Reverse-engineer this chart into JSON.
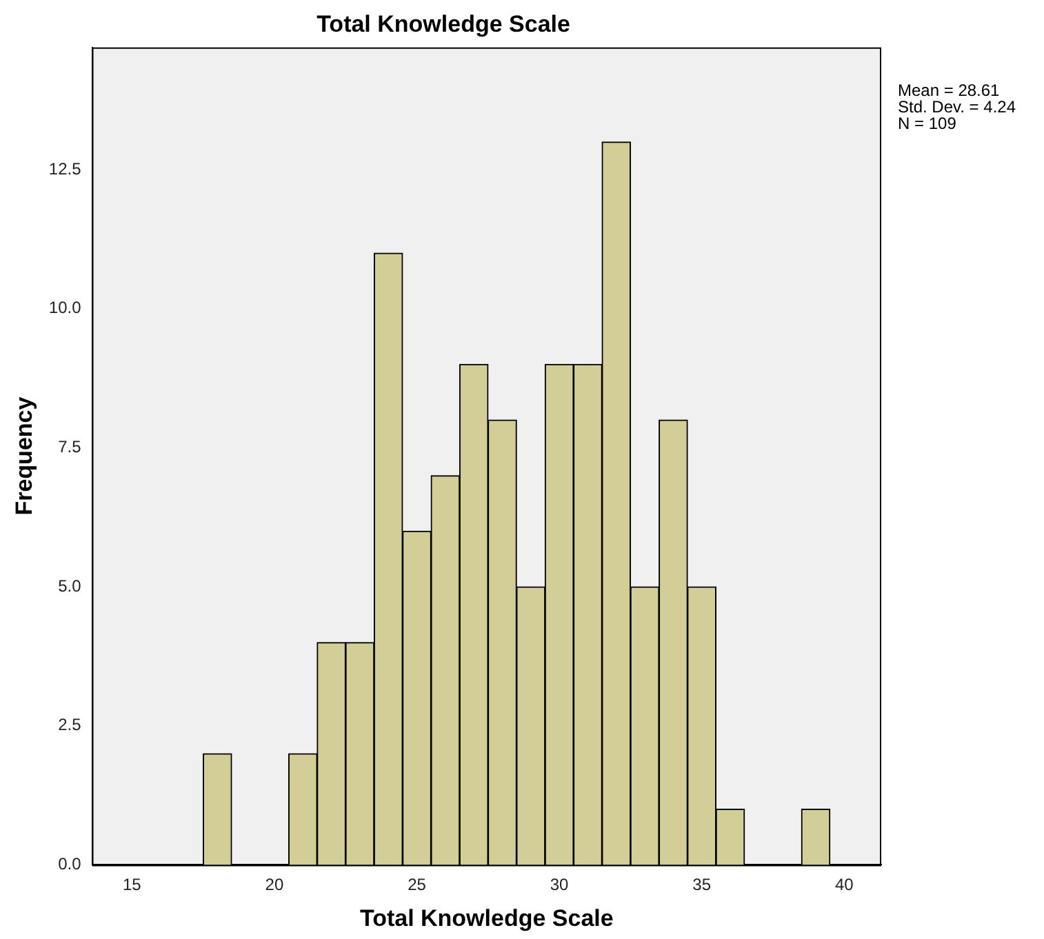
{
  "chart_data": {
    "type": "histogram",
    "title": "Total Knowledge Scale",
    "xlabel": "Total Knowledge Scale",
    "ylabel": "Frequency",
    "bins": [
      17.5,
      18.5,
      19.5,
      20.5,
      21.5,
      22.5,
      23.5,
      24.5,
      25.5,
      26.5,
      27.5,
      28.5,
      29.5,
      30.5,
      31.5,
      32.5,
      33.5,
      34.5,
      35.5,
      36.5,
      37.5,
      38.5,
      39.5
    ],
    "values": [
      2,
      0,
      0,
      2,
      4,
      4,
      11,
      6,
      7,
      9,
      8,
      5,
      9,
      9,
      13,
      5,
      8,
      5,
      1,
      0,
      0,
      1
    ],
    "color": "#d3ce97",
    "xlim": [
      13.6,
      41.3
    ],
    "xticks": [
      15,
      20,
      25,
      30,
      35,
      40
    ],
    "ylim": [
      0,
      14.7
    ],
    "yticks": [
      {
        "value": 0,
        "label": "0.0"
      },
      {
        "value": 2.5,
        "label": "2.5"
      },
      {
        "value": 5,
        "label": "5.0"
      },
      {
        "value": 7.5,
        "label": "7.5"
      },
      {
        "value": 10,
        "label": "10.0"
      },
      {
        "value": 12.5,
        "label": "12.5"
      }
    ],
    "grid": false,
    "legend": false,
    "annotations": [
      "Mean = 28.61",
      "Std. Dev. = 4.24",
      "N = 109"
    ]
  }
}
